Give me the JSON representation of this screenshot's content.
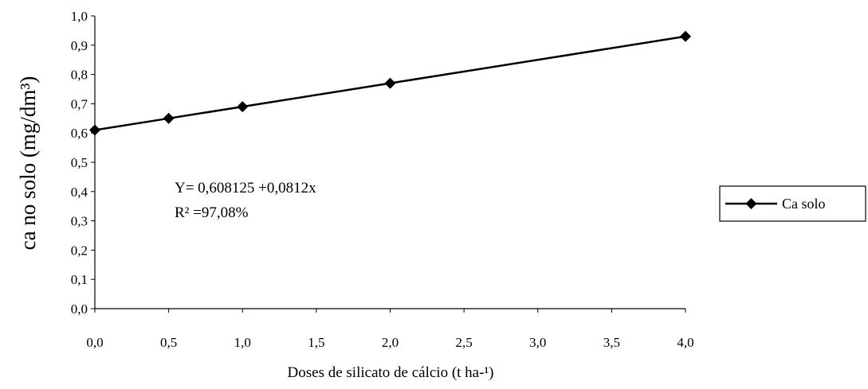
{
  "chart_data": {
    "type": "line",
    "xlabel": "Doses de silicato de cálcio (t ha-¹)",
    "ylabel": "ca no solo (mg/dm³)",
    "xlim": [
      0,
      4
    ],
    "ylim": [
      0,
      1
    ],
    "x_ticks": [
      "0,0",
      "0,5",
      "1,0",
      "1,5",
      "2,0",
      "2,5",
      "3,0",
      "3,5",
      "4,0"
    ],
    "y_ticks": [
      "0,0",
      "0,1",
      "0,2",
      "0,3",
      "0,4",
      "0,5",
      "0,6",
      "0,7",
      "0,8",
      "0,9",
      "1,0"
    ],
    "grid": false,
    "legend_position": "right",
    "series": [
      {
        "name": "Ca solo",
        "x": [
          0,
          0.5,
          1,
          2,
          4
        ],
        "y": [
          0.61,
          0.65,
          0.69,
          0.77,
          0.93
        ],
        "marker": "diamond",
        "color": "#000000"
      }
    ],
    "annotations": [
      "Y= 0,608125 +0,0812x",
      "R² =97,08%"
    ]
  }
}
